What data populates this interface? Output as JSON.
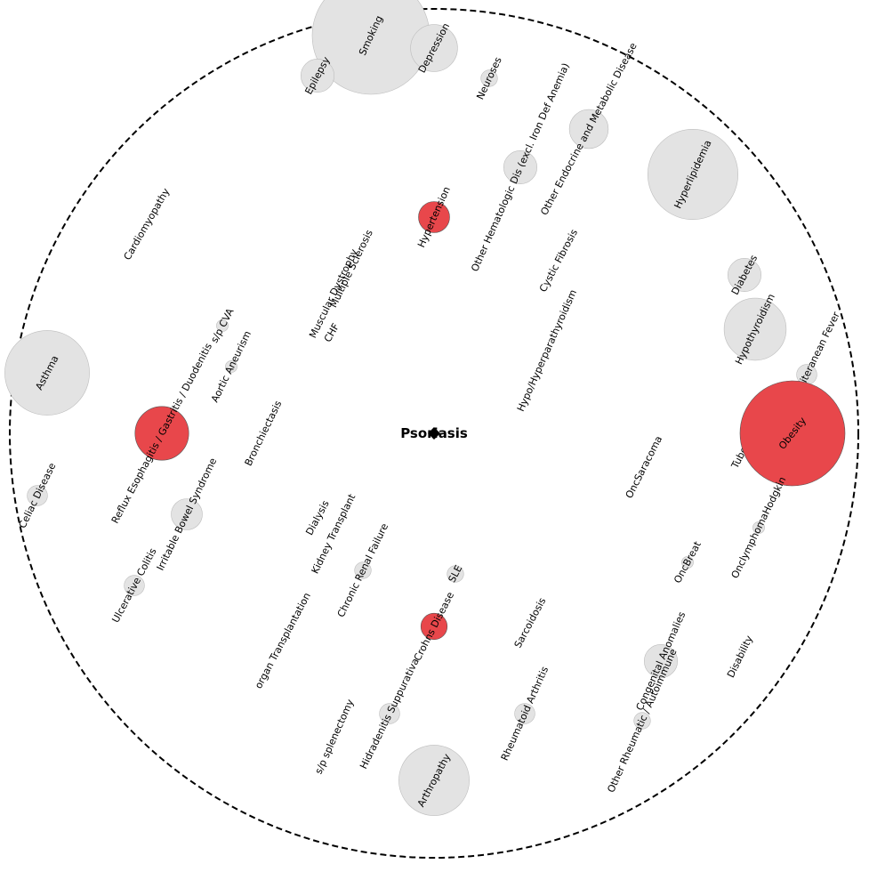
{
  "diagram": {
    "center_label": "Psoriasis",
    "colors": {
      "highlight": "#e8474b",
      "neutral": "#e3e3e3",
      "ring": "#000000"
    },
    "nodes": [
      {
        "name": "Smoking",
        "highlighted": false,
        "level": 1.0
      },
      {
        "name": "Depression",
        "highlighted": false,
        "level": 0.16
      },
      {
        "name": "Epilepsy",
        "highlighted": false,
        "level": 0.08
      },
      {
        "name": "Neuroses",
        "highlighted": false,
        "level": 0.02
      },
      {
        "name": "Other Endocrine and Metabolic Disease",
        "highlighted": false,
        "level": 0.11
      },
      {
        "name": "Other Hematologic Dis (excl. Iron Def Anemia)",
        "highlighted": false,
        "level": 0.08
      },
      {
        "name": "Hyperlipidemia",
        "highlighted": false,
        "level": 0.59
      },
      {
        "name": "Hypertension",
        "highlighted": true,
        "level": 0.07
      },
      {
        "name": "Cardiomyopathy",
        "highlighted": false,
        "level": 0.0
      },
      {
        "name": "Diabetes",
        "highlighted": false,
        "level": 0.08
      },
      {
        "name": "Cystic Fibrosis",
        "highlighted": false,
        "level": 0.0
      },
      {
        "name": "Multiple Sclerosis",
        "highlighted": false,
        "level": 0.0
      },
      {
        "name": "Muscular Dystrophy",
        "highlighted": false,
        "level": 0.0
      },
      {
        "name": "Hypothyroidism",
        "highlighted": false,
        "level": 0.28
      },
      {
        "name": "s/p CVA",
        "highlighted": false,
        "level": 0.01
      },
      {
        "name": "CHF",
        "highlighted": false,
        "level": 0.0
      },
      {
        "name": "Asthma",
        "highlighted": false,
        "level": 0.52
      },
      {
        "name": "Aortic Aneurism",
        "highlighted": false,
        "level": 0.01
      },
      {
        "name": "Hypo/Hyperparathyroidism",
        "highlighted": false,
        "level": 0.0
      },
      {
        "name": "Familial Mediteranean Fever",
        "highlighted": false,
        "level": 0.03
      },
      {
        "name": "Reflux Esophagitis / Gastritis / Duodenitis",
        "highlighted": true,
        "level": 0.21
      },
      {
        "name": "Bronchiectasis",
        "highlighted": false,
        "level": 0.0
      },
      {
        "name": "Tuberculosis s/p",
        "highlighted": false,
        "level": 0.0
      },
      {
        "name": "Obesity",
        "highlighted": true,
        "level": 0.8
      },
      {
        "name": "Celiac Disease",
        "highlighted": false,
        "level": 0.03
      },
      {
        "name": "OncSaracoma",
        "highlighted": false,
        "level": 0.0
      },
      {
        "name": "Irritable Bowel Syndrome",
        "highlighted": false,
        "level": 0.07
      },
      {
        "name": "Dialysis",
        "highlighted": false,
        "level": 0.0
      },
      {
        "name": "Kidney Transplant",
        "highlighted": false,
        "level": 0.0
      },
      {
        "name": "OnclymphomaHodgkin",
        "highlighted": false,
        "level": 0.01
      },
      {
        "name": "OncBreat",
        "highlighted": false,
        "level": 0.01
      },
      {
        "name": "Ulcerative Colitis",
        "highlighted": false,
        "level": 0.03
      },
      {
        "name": "Chronic Renal Failure",
        "highlighted": false,
        "level": 0.02
      },
      {
        "name": "SLE",
        "highlighted": false,
        "level": 0.02
      },
      {
        "name": "Crohns Disease",
        "highlighted": true,
        "level": 0.05
      },
      {
        "name": "organ Transplantation",
        "highlighted": false,
        "level": 0.0
      },
      {
        "name": "Sarcoidosis",
        "highlighted": false,
        "level": 0.0
      },
      {
        "name": "Congenital Anomalies",
        "highlighted": false,
        "level": 0.08
      },
      {
        "name": "Disability",
        "highlighted": false,
        "level": 0.0
      },
      {
        "name": "Other Rheumatic / Autoimmune",
        "highlighted": false,
        "level": 0.02
      },
      {
        "name": "Hidradenitis Suppurativa",
        "highlighted": false,
        "level": 0.03
      },
      {
        "name": "s/p splenectomy",
        "highlighted": false,
        "level": 0.0
      },
      {
        "name": "Rheumatoid Arthritis",
        "highlighted": false,
        "level": 0.03
      },
      {
        "name": "Arthropathy",
        "highlighted": false,
        "level": 0.36
      }
    ]
  }
}
